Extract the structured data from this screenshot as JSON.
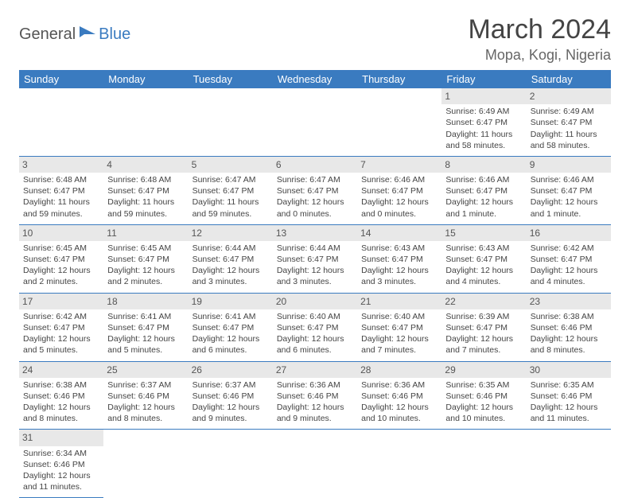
{
  "logo": {
    "general": "General",
    "blue": "Blue"
  },
  "title": "March 2024",
  "location": "Mopa, Kogi, Nigeria",
  "colors": {
    "header_bg": "#3a7bc0",
    "daynum_bg": "#e8e8e8"
  },
  "weekdays": [
    "Sunday",
    "Monday",
    "Tuesday",
    "Wednesday",
    "Thursday",
    "Friday",
    "Saturday"
  ],
  "weeks": [
    [
      null,
      null,
      null,
      null,
      null,
      {
        "n": "1",
        "sr": "Sunrise: 6:49 AM",
        "ss": "Sunset: 6:47 PM",
        "dl": "Daylight: 11 hours and 58 minutes."
      },
      {
        "n": "2",
        "sr": "Sunrise: 6:49 AM",
        "ss": "Sunset: 6:47 PM",
        "dl": "Daylight: 11 hours and 58 minutes."
      }
    ],
    [
      {
        "n": "3",
        "sr": "Sunrise: 6:48 AM",
        "ss": "Sunset: 6:47 PM",
        "dl": "Daylight: 11 hours and 59 minutes."
      },
      {
        "n": "4",
        "sr": "Sunrise: 6:48 AM",
        "ss": "Sunset: 6:47 PM",
        "dl": "Daylight: 11 hours and 59 minutes."
      },
      {
        "n": "5",
        "sr": "Sunrise: 6:47 AM",
        "ss": "Sunset: 6:47 PM",
        "dl": "Daylight: 11 hours and 59 minutes."
      },
      {
        "n": "6",
        "sr": "Sunrise: 6:47 AM",
        "ss": "Sunset: 6:47 PM",
        "dl": "Daylight: 12 hours and 0 minutes."
      },
      {
        "n": "7",
        "sr": "Sunrise: 6:46 AM",
        "ss": "Sunset: 6:47 PM",
        "dl": "Daylight: 12 hours and 0 minutes."
      },
      {
        "n": "8",
        "sr": "Sunrise: 6:46 AM",
        "ss": "Sunset: 6:47 PM",
        "dl": "Daylight: 12 hours and 1 minute."
      },
      {
        "n": "9",
        "sr": "Sunrise: 6:46 AM",
        "ss": "Sunset: 6:47 PM",
        "dl": "Daylight: 12 hours and 1 minute."
      }
    ],
    [
      {
        "n": "10",
        "sr": "Sunrise: 6:45 AM",
        "ss": "Sunset: 6:47 PM",
        "dl": "Daylight: 12 hours and 2 minutes."
      },
      {
        "n": "11",
        "sr": "Sunrise: 6:45 AM",
        "ss": "Sunset: 6:47 PM",
        "dl": "Daylight: 12 hours and 2 minutes."
      },
      {
        "n": "12",
        "sr": "Sunrise: 6:44 AM",
        "ss": "Sunset: 6:47 PM",
        "dl": "Daylight: 12 hours and 3 minutes."
      },
      {
        "n": "13",
        "sr": "Sunrise: 6:44 AM",
        "ss": "Sunset: 6:47 PM",
        "dl": "Daylight: 12 hours and 3 minutes."
      },
      {
        "n": "14",
        "sr": "Sunrise: 6:43 AM",
        "ss": "Sunset: 6:47 PM",
        "dl": "Daylight: 12 hours and 3 minutes."
      },
      {
        "n": "15",
        "sr": "Sunrise: 6:43 AM",
        "ss": "Sunset: 6:47 PM",
        "dl": "Daylight: 12 hours and 4 minutes."
      },
      {
        "n": "16",
        "sr": "Sunrise: 6:42 AM",
        "ss": "Sunset: 6:47 PM",
        "dl": "Daylight: 12 hours and 4 minutes."
      }
    ],
    [
      {
        "n": "17",
        "sr": "Sunrise: 6:42 AM",
        "ss": "Sunset: 6:47 PM",
        "dl": "Daylight: 12 hours and 5 minutes."
      },
      {
        "n": "18",
        "sr": "Sunrise: 6:41 AM",
        "ss": "Sunset: 6:47 PM",
        "dl": "Daylight: 12 hours and 5 minutes."
      },
      {
        "n": "19",
        "sr": "Sunrise: 6:41 AM",
        "ss": "Sunset: 6:47 PM",
        "dl": "Daylight: 12 hours and 6 minutes."
      },
      {
        "n": "20",
        "sr": "Sunrise: 6:40 AM",
        "ss": "Sunset: 6:47 PM",
        "dl": "Daylight: 12 hours and 6 minutes."
      },
      {
        "n": "21",
        "sr": "Sunrise: 6:40 AM",
        "ss": "Sunset: 6:47 PM",
        "dl": "Daylight: 12 hours and 7 minutes."
      },
      {
        "n": "22",
        "sr": "Sunrise: 6:39 AM",
        "ss": "Sunset: 6:47 PM",
        "dl": "Daylight: 12 hours and 7 minutes."
      },
      {
        "n": "23",
        "sr": "Sunrise: 6:38 AM",
        "ss": "Sunset: 6:46 PM",
        "dl": "Daylight: 12 hours and 8 minutes."
      }
    ],
    [
      {
        "n": "24",
        "sr": "Sunrise: 6:38 AM",
        "ss": "Sunset: 6:46 PM",
        "dl": "Daylight: 12 hours and 8 minutes."
      },
      {
        "n": "25",
        "sr": "Sunrise: 6:37 AM",
        "ss": "Sunset: 6:46 PM",
        "dl": "Daylight: 12 hours and 8 minutes."
      },
      {
        "n": "26",
        "sr": "Sunrise: 6:37 AM",
        "ss": "Sunset: 6:46 PM",
        "dl": "Daylight: 12 hours and 9 minutes."
      },
      {
        "n": "27",
        "sr": "Sunrise: 6:36 AM",
        "ss": "Sunset: 6:46 PM",
        "dl": "Daylight: 12 hours and 9 minutes."
      },
      {
        "n": "28",
        "sr": "Sunrise: 6:36 AM",
        "ss": "Sunset: 6:46 PM",
        "dl": "Daylight: 12 hours and 10 minutes."
      },
      {
        "n": "29",
        "sr": "Sunrise: 6:35 AM",
        "ss": "Sunset: 6:46 PM",
        "dl": "Daylight: 12 hours and 10 minutes."
      },
      {
        "n": "30",
        "sr": "Sunrise: 6:35 AM",
        "ss": "Sunset: 6:46 PM",
        "dl": "Daylight: 12 hours and 11 minutes."
      }
    ],
    [
      {
        "n": "31",
        "sr": "Sunrise: 6:34 AM",
        "ss": "Sunset: 6:46 PM",
        "dl": "Daylight: 12 hours and 11 minutes."
      },
      null,
      null,
      null,
      null,
      null,
      null
    ]
  ]
}
